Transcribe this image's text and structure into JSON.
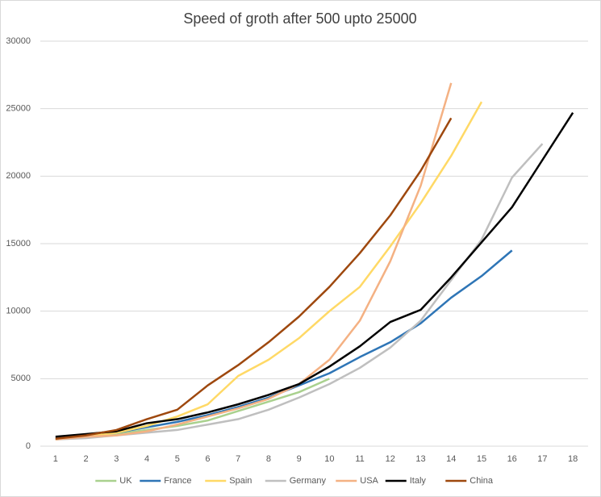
{
  "chart_data": {
    "type": "line",
    "title": "Speed of groth after 500 upto 25000",
    "categories": [
      "1",
      "2",
      "3",
      "4",
      "5",
      "6",
      "7",
      "8",
      "9",
      "10",
      "11",
      "12",
      "13",
      "14",
      "15",
      "16",
      "17",
      "18"
    ],
    "ylim": [
      0,
      30000
    ],
    "yticks": [
      0,
      5000,
      10000,
      15000,
      20000,
      25000,
      30000
    ],
    "grid": true,
    "legend": "bottom",
    "series": [
      {
        "name": "UK",
        "color": "#a9d18e",
        "values": [
          500,
          700,
          900,
          1200,
          1500,
          1900,
          2600,
          3300,
          4000,
          5000,
          null,
          null,
          null,
          null,
          null,
          null,
          null,
          null
        ]
      },
      {
        "name": "France",
        "color": "#2e75b6",
        "values": [
          600,
          800,
          1000,
          1400,
          1800,
          2300,
          2900,
          3600,
          4500,
          5400,
          6600,
          7700,
          9100,
          11000,
          12600,
          14500,
          null,
          null
        ]
      },
      {
        "name": "Spain",
        "color": "#ffd966",
        "values": [
          500,
          700,
          1000,
          1500,
          2200,
          3100,
          5200,
          6400,
          8000,
          10000,
          11800,
          14800,
          18000,
          21500,
          25500,
          null,
          null,
          null
        ]
      },
      {
        "name": "Germany",
        "color": "#bfbfbf",
        "values": [
          500,
          600,
          800,
          1000,
          1200,
          1600,
          2000,
          2700,
          3600,
          4600,
          5800,
          7300,
          9300,
          12300,
          15300,
          19900,
          22400,
          null
        ]
      },
      {
        "name": "USA",
        "color": "#f4b183",
        "values": [
          500,
          700,
          800,
          1100,
          1600,
          2200,
          2800,
          3500,
          4600,
          6400,
          9300,
          13700,
          19300,
          26900,
          null,
          null,
          null,
          null
        ]
      },
      {
        "name": "Italy",
        "color": "#000000",
        "values": [
          700,
          900,
          1100,
          1700,
          2000,
          2500,
          3100,
          3800,
          4600,
          5900,
          7400,
          9200,
          10100,
          12500,
          15100,
          17700,
          21200,
          24700
        ]
      },
      {
        "name": "China",
        "color": "#9e480e",
        "values": [
          550,
          800,
          1200,
          2000,
          2700,
          4500,
          6000,
          7700,
          9600,
          11800,
          14300,
          17100,
          20400,
          24300,
          null,
          null,
          null,
          null
        ]
      }
    ]
  }
}
